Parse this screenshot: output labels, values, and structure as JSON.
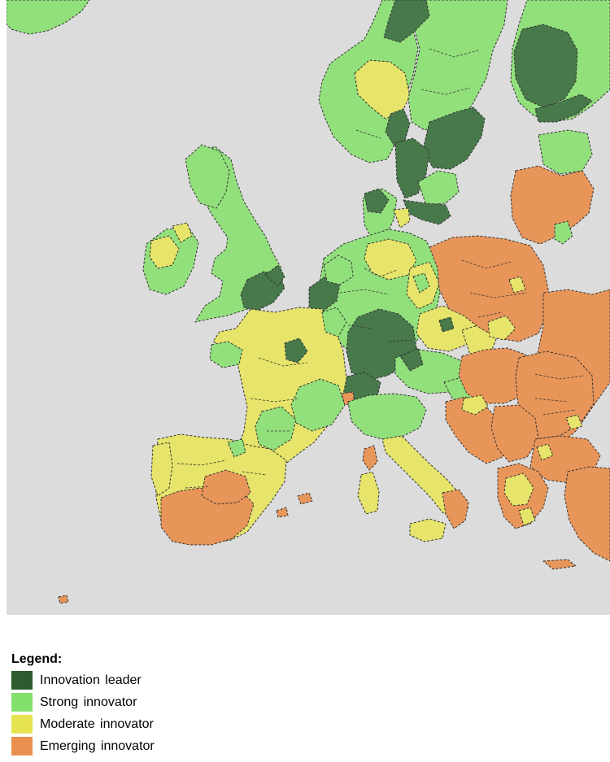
{
  "map": {
    "colors": {
      "sea": "#dcdcdc",
      "innovation_leader": "#47794a",
      "strong_innovator": "#92e07c",
      "moderate_innovator": "#e6e46a",
      "emerging_innovator": "#e8955a",
      "boundary": "#333333"
    }
  },
  "legend": {
    "title": "Legend:",
    "items": [
      {
        "label": "Innovation leader",
        "color": "#2e5c2e"
      },
      {
        "label": "Strong innovator",
        "color": "#84e06c"
      },
      {
        "label": "Moderate innovator",
        "color": "#e6e452"
      },
      {
        "label": "Emerging innovator",
        "color": "#e9904f"
      }
    ]
  }
}
